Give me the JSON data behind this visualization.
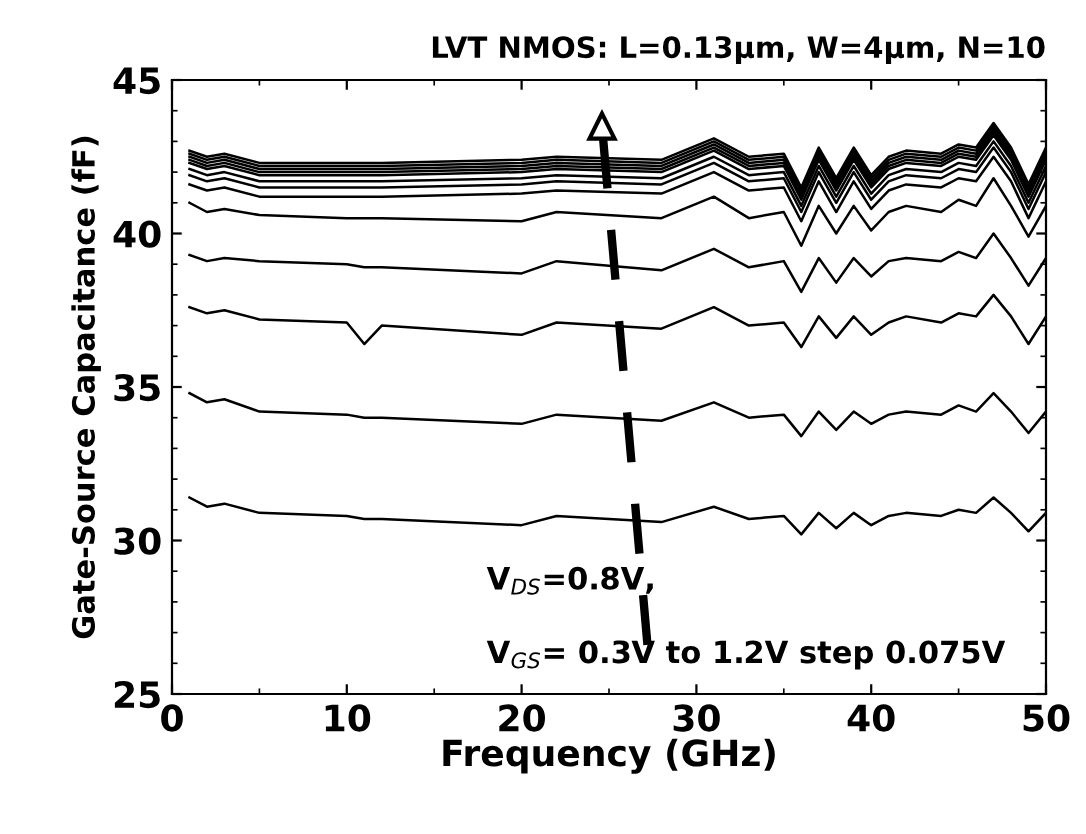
{
  "chart_data": {
    "type": "line",
    "title": "LVT NMOS: L=0.13μm, W=4μm, N=10",
    "xlabel": "Frequency (GHz)",
    "ylabel": "Gate-Source Capacitance (fF)",
    "x": [
      1,
      2,
      3,
      5,
      10,
      11,
      12,
      20,
      22,
      28,
      31,
      33,
      35,
      36,
      37,
      38,
      39,
      40,
      41,
      42,
      44,
      45,
      46,
      47,
      48,
      49,
      50
    ],
    "xlim": [
      0,
      50
    ],
    "xticks": [
      0,
      10,
      20,
      30,
      40,
      50
    ],
    "ylim": [
      25,
      45
    ],
    "yticks": [
      25,
      30,
      35,
      40,
      45
    ],
    "grid": false,
    "marker": "none",
    "line_style": "solid",
    "series": [
      {
        "color": "#000000",
        "values": [
          31.4,
          31.1,
          31.2,
          30.9,
          30.8,
          30.7,
          30.7,
          30.5,
          30.8,
          30.6,
          31.1,
          30.7,
          30.8,
          30.2,
          30.9,
          30.4,
          30.9,
          30.5,
          30.8,
          30.9,
          30.8,
          31.0,
          30.9,
          31.4,
          30.9,
          30.3,
          30.9
        ]
      },
      {
        "color": "#000000",
        "values": [
          34.8,
          34.5,
          34.6,
          34.2,
          34.1,
          34.0,
          34.0,
          33.8,
          34.1,
          33.9,
          34.5,
          34.0,
          34.1,
          33.4,
          34.2,
          33.6,
          34.2,
          33.8,
          34.1,
          34.2,
          34.1,
          34.4,
          34.2,
          34.8,
          34.2,
          33.5,
          34.2
        ]
      },
      {
        "color": "#000000",
        "values": [
          37.6,
          37.4,
          37.5,
          37.2,
          37.1,
          36.4,
          37.0,
          36.7,
          37.1,
          36.9,
          37.6,
          37.0,
          37.1,
          36.3,
          37.3,
          36.6,
          37.3,
          36.7,
          37.1,
          37.3,
          37.1,
          37.4,
          37.3,
          38.0,
          37.3,
          36.4,
          37.3
        ]
      },
      {
        "color": "#000000",
        "values": [
          39.3,
          39.1,
          39.2,
          39.1,
          39.0,
          38.9,
          38.9,
          38.7,
          39.1,
          38.8,
          39.5,
          38.9,
          39.1,
          38.1,
          39.2,
          38.4,
          39.2,
          38.6,
          39.1,
          39.2,
          39.1,
          39.4,
          39.2,
          40.0,
          39.2,
          38.3,
          39.2
        ]
      },
      {
        "color": "#000000",
        "values": [
          41.0,
          40.7,
          40.8,
          40.6,
          40.5,
          40.5,
          40.5,
          40.4,
          40.7,
          40.5,
          41.2,
          40.5,
          40.7,
          39.6,
          40.9,
          40.0,
          40.9,
          40.1,
          40.7,
          40.9,
          40.7,
          41.1,
          40.9,
          41.8,
          40.9,
          39.9,
          40.9
        ]
      },
      {
        "color": "#000000",
        "values": [
          41.6,
          41.4,
          41.5,
          41.2,
          41.2,
          41.2,
          41.2,
          41.3,
          41.4,
          41.3,
          42.0,
          41.4,
          41.5,
          40.4,
          41.7,
          40.7,
          41.7,
          40.8,
          41.4,
          41.6,
          41.5,
          41.8,
          41.7,
          42.5,
          41.7,
          40.5,
          41.7
        ]
      },
      {
        "color": "#000000",
        "values": [
          41.9,
          41.7,
          41.8,
          41.5,
          41.5,
          41.5,
          41.5,
          41.6,
          41.7,
          41.6,
          42.3,
          41.7,
          41.8,
          40.7,
          42.0,
          41.0,
          42.0,
          41.1,
          41.7,
          41.9,
          41.8,
          42.1,
          42.0,
          42.8,
          42.0,
          40.8,
          42.0
        ]
      },
      {
        "color": "#000000",
        "values": [
          42.1,
          41.9,
          42.0,
          41.7,
          41.7,
          41.7,
          41.7,
          41.8,
          41.9,
          41.8,
          42.5,
          41.9,
          42.0,
          40.9,
          42.2,
          41.2,
          42.2,
          41.3,
          41.9,
          42.1,
          42.0,
          42.3,
          42.2,
          43.0,
          42.2,
          41.0,
          42.2
        ]
      },
      {
        "color": "#000000",
        "values": [
          42.3,
          42.1,
          42.2,
          41.9,
          41.9,
          41.9,
          41.9,
          42.0,
          42.1,
          42.0,
          42.7,
          42.1,
          42.2,
          41.1,
          42.4,
          41.4,
          42.4,
          41.5,
          42.1,
          42.3,
          42.2,
          42.5,
          42.4,
          43.2,
          42.4,
          41.2,
          42.4
        ]
      },
      {
        "color": "#000000",
        "values": [
          42.4,
          42.2,
          42.3,
          42.0,
          42.0,
          42.0,
          42.0,
          42.1,
          42.2,
          42.1,
          42.8,
          42.2,
          42.3,
          41.2,
          42.5,
          41.5,
          42.5,
          41.6,
          42.2,
          42.4,
          42.3,
          42.6,
          42.5,
          43.3,
          42.5,
          41.3,
          42.5
        ]
      },
      {
        "color": "#000000",
        "values": [
          42.5,
          42.3,
          42.4,
          42.1,
          42.1,
          42.1,
          42.1,
          42.2,
          42.3,
          42.2,
          42.9,
          42.3,
          42.4,
          41.3,
          42.6,
          41.6,
          42.6,
          41.7,
          42.3,
          42.5,
          42.4,
          42.7,
          42.6,
          43.4,
          42.6,
          41.4,
          42.6
        ]
      },
      {
        "color": "#000000",
        "values": [
          42.6,
          42.4,
          42.5,
          42.2,
          42.2,
          42.2,
          42.2,
          42.3,
          42.4,
          42.3,
          43.0,
          42.4,
          42.5,
          41.4,
          42.7,
          41.7,
          42.7,
          41.8,
          42.4,
          42.6,
          42.5,
          42.8,
          42.7,
          43.5,
          42.7,
          41.5,
          42.7
        ]
      },
      {
        "color": "#000000",
        "values": [
          42.7,
          42.5,
          42.6,
          42.3,
          42.3,
          42.3,
          42.3,
          42.4,
          42.5,
          42.4,
          43.1,
          42.5,
          42.6,
          41.5,
          42.8,
          41.8,
          42.8,
          41.9,
          42.5,
          42.7,
          42.6,
          42.9,
          42.8,
          43.6,
          42.8,
          41.6,
          42.8
        ]
      },
      {
        "type": "line",
        "color": "#000000",
        "line_style": "dashed",
        "marker": "triangle",
        "x": [
          27.2,
          24.6
        ],
        "values": [
          26.6,
          43.5
        ]
      }
    ],
    "annotations": [
      "V$_{DS}$=0.8V,",
      "V$_{GS}$= 0.3V to 1.2V step 0.075V"
    ]
  }
}
